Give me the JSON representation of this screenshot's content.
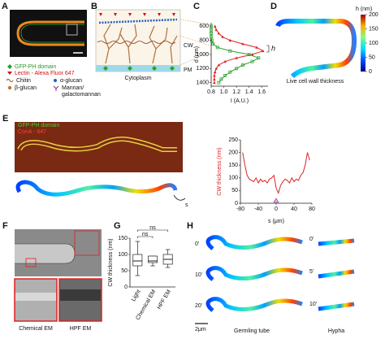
{
  "panels": {
    "A": {
      "letter": "A",
      "legend": [
        "GFP-PH domain",
        "Lectin - Alexa Fluor 647",
        "Chitin",
        "α-glucan",
        "β-glucan",
        "Mannan/",
        "galactomannan"
      ]
    },
    "B": {
      "letter": "B",
      "labels": [
        "CW",
        "PM",
        "Cytoplasm"
      ]
    },
    "C": {
      "letter": "C"
    },
    "D": {
      "letter": "D",
      "caption": "Live cell wall thickness",
      "colorbar": {
        "label": "h (nm)",
        "lim": [
          0,
          200
        ],
        "ticks": [
          0,
          50,
          100,
          150,
          200
        ]
      }
    },
    "E": {
      "letter": "E",
      "legend": [
        "GFP-PH domain",
        "ConA - 647"
      ],
      "arc_label": "s"
    },
    "F": {
      "letter": "F",
      "captions": [
        "Chemical EM",
        "HPF EM"
      ]
    },
    "G": {
      "letter": "G"
    },
    "H": {
      "letter": "H",
      "germling_times": [
        "0'",
        "10'",
        "20'"
      ],
      "germling_caption": "Germling tube",
      "hypha_times": [
        "0'",
        "5'",
        "10'"
      ],
      "hypha_caption": "Hypha",
      "scale_bar": "2μm"
    }
  },
  "chart_data": [
    {
      "type": "line",
      "orientation": "vertical",
      "ylabel": "d (nm)",
      "xlabel": "I (A.U.)",
      "y": [
        600,
        650,
        700,
        750,
        800,
        850,
        900,
        950,
        1000,
        1050,
        1100,
        1150,
        1200,
        1250,
        1300,
        1350,
        1400
      ],
      "ylim": [
        550,
        1450
      ],
      "yinvert": true,
      "yticks": [
        600,
        800,
        1000,
        1200,
        1400
      ],
      "xlim": [
        0.8,
        1.7
      ],
      "xticks": [
        0.8,
        {
          "value": 1,
          "label": "1.0"
        },
        1.2,
        1.4,
        1.6
      ],
      "series": [
        {
          "color": "#e02020",
          "marker": "triangle",
          "values": [
            0.86,
            0.88,
            0.92,
            0.98,
            1.1,
            1.3,
            1.52,
            1.62,
            1.45,
            1.2,
            1.02,
            0.92,
            0.88,
            0.86,
            0.85,
            0.85,
            0.85
          ]
        },
        {
          "color": "#2ca02c",
          "marker": "square",
          "values": [
            0.8,
            0.8,
            0.8,
            0.8,
            0.81,
            0.83,
            0.9,
            1.1,
            1.4,
            1.55,
            1.45,
            1.3,
            1.2,
            1.1,
            1.02,
            0.96,
            0.92
          ]
        }
      ],
      "annotation": "h"
    },
    {
      "type": "line",
      "xlabel": "s (μm)",
      "ylabel": "CW thickness (nm)",
      "x": [
        -75,
        -70,
        -65,
        -60,
        -55,
        -50,
        -45,
        -40,
        -35,
        -30,
        -25,
        -20,
        -15,
        -10,
        -5,
        0,
        5,
        10,
        15,
        20,
        25,
        30,
        35,
        40,
        45,
        50,
        55,
        60,
        65,
        70,
        75
      ],
      "values": [
        200,
        150,
        110,
        95,
        90,
        85,
        100,
        80,
        95,
        85,
        90,
        80,
        95,
        100,
        110,
        60,
        40,
        70,
        85,
        95,
        90,
        80,
        100,
        85,
        95,
        90,
        110,
        120,
        150,
        200,
        170
      ],
      "color": "#e02020",
      "xlim": [
        -80,
        80
      ],
      "xticks": [
        -80,
        -40,
        0,
        40,
        80
      ],
      "ylim": [
        0,
        250
      ],
      "yticks": [
        0,
        50,
        100,
        150,
        200,
        250
      ],
      "marker_x": 0
    },
    {
      "type": "box",
      "ylabel": "CW thickness (nm)",
      "categories": [
        "Light",
        "Chemical EM",
        "HPF EM"
      ],
      "stats": [
        {
          "min": 35,
          "q1": 65,
          "median": 80,
          "q3": 100,
          "max": 140
        },
        {
          "min": 65,
          "q1": 75,
          "median": 80,
          "q3": 95,
          "max": 95
        },
        {
          "min": 60,
          "q1": 70,
          "median": 85,
          "q3": 100,
          "max": 115
        }
      ],
      "ylim": [
        0,
        150
      ],
      "yticks": [
        0,
        50,
        100,
        150
      ],
      "annotations": [
        "ns",
        "ns"
      ]
    }
  ]
}
